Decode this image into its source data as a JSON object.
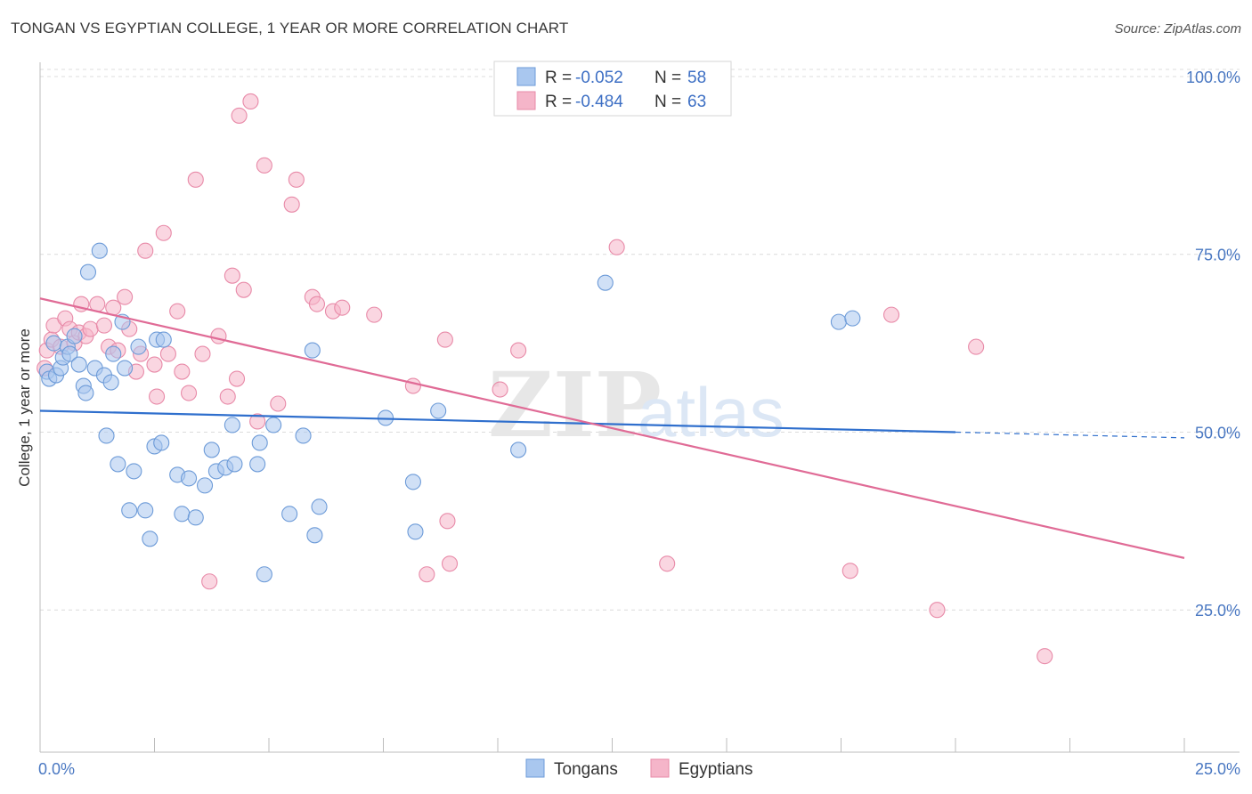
{
  "header": {
    "title": "TONGAN VS EGYPTIAN COLLEGE, 1 YEAR OR MORE CORRELATION CHART",
    "source": "Source: ZipAtlas.com"
  },
  "watermark": {
    "part1": "ZIP",
    "part2": "atlas"
  },
  "legend_top": [
    {
      "r_label": "R = ",
      "r_value": "-0.052",
      "n_label": "N = ",
      "n_value": "58",
      "color": "#a9c7ef"
    },
    {
      "r_label": "R = ",
      "r_value": "-0.484",
      "n_label": "N = ",
      "n_value": "63",
      "color": "#f5b5c9"
    }
  ],
  "legend_bottom": [
    {
      "label": "Tongans",
      "color": "#a9c7ef"
    },
    {
      "label": "Egyptians",
      "color": "#f5b5c9"
    }
  ],
  "colors": {
    "blue_fill": "#a9c7ef",
    "blue_stroke": "#6d9bd8",
    "blue_line": "#2f6fcd",
    "pink_fill": "#f5b5c9",
    "pink_stroke": "#e88aa8",
    "pink_line": "#e06b96",
    "grid": "#dcdcdc",
    "tick_text": "#4a78c2"
  },
  "chart_data": {
    "type": "scatter",
    "title": "TONGAN VS EGYPTIAN COLLEGE, 1 YEAR OR MORE CORRELATION CHART",
    "xlabel": "",
    "ylabel": "College, 1 year or more",
    "xlim": [
      0,
      25
    ],
    "ylim": [
      5,
      102
    ],
    "x_tick_labels": [
      {
        "value": 0,
        "label": "0.0%"
      },
      {
        "value": 25,
        "label": "25.0%"
      }
    ],
    "y_tick_labels": [
      {
        "value": 25,
        "label": "25.0%"
      },
      {
        "value": 50,
        "label": "50.0%"
      },
      {
        "value": 75,
        "label": "75.0%"
      },
      {
        "value": 100,
        "label": "100.0%"
      }
    ],
    "grid": true,
    "legend": "top-center",
    "series": [
      {
        "name": "Tongans",
        "r": -0.052,
        "n": 58,
        "trend": {
          "x0": 0,
          "y0": 53.0,
          "x1": 20,
          "y1": 50.0,
          "dashed_to_x": 25,
          "dashed_to_y": 49.2
        },
        "points": [
          [
            0.15,
            58.5
          ],
          [
            0.2,
            57.5
          ],
          [
            0.3,
            62.5
          ],
          [
            0.35,
            58.0
          ],
          [
            0.45,
            59.0
          ],
          [
            0.5,
            60.5
          ],
          [
            0.6,
            62.0
          ],
          [
            0.65,
            61.0
          ],
          [
            0.75,
            63.5
          ],
          [
            0.85,
            59.5
          ],
          [
            0.95,
            56.5
          ],
          [
            1.0,
            55.5
          ],
          [
            1.05,
            72.5
          ],
          [
            1.2,
            59.0
          ],
          [
            1.3,
            75.5
          ],
          [
            1.4,
            58.0
          ],
          [
            1.45,
            49.5
          ],
          [
            1.55,
            57.0
          ],
          [
            1.6,
            61.0
          ],
          [
            1.7,
            45.5
          ],
          [
            1.8,
            65.5
          ],
          [
            1.85,
            59.0
          ],
          [
            1.95,
            39.0
          ],
          [
            2.05,
            44.5
          ],
          [
            2.15,
            62.0
          ],
          [
            2.3,
            39.0
          ],
          [
            2.4,
            35.0
          ],
          [
            2.5,
            48.0
          ],
          [
            2.55,
            63.0
          ],
          [
            2.65,
            48.5
          ],
          [
            2.7,
            63.0
          ],
          [
            3.0,
            44.0
          ],
          [
            3.1,
            38.5
          ],
          [
            3.25,
            43.5
          ],
          [
            3.4,
            38.0
          ],
          [
            3.6,
            42.5
          ],
          [
            3.75,
            47.5
          ],
          [
            3.85,
            44.5
          ],
          [
            4.05,
            45.0
          ],
          [
            4.2,
            51.0
          ],
          [
            4.25,
            45.5
          ],
          [
            4.75,
            45.5
          ],
          [
            4.8,
            48.5
          ],
          [
            4.9,
            30.0
          ],
          [
            5.1,
            51.0
          ],
          [
            5.45,
            38.5
          ],
          [
            5.75,
            49.5
          ],
          [
            5.95,
            61.5
          ],
          [
            6.0,
            35.5
          ],
          [
            6.1,
            39.5
          ],
          [
            7.55,
            52.0
          ],
          [
            8.15,
            43.0
          ],
          [
            8.2,
            36.0
          ],
          [
            8.7,
            53.0
          ],
          [
            10.45,
            47.5
          ],
          [
            12.35,
            71.0
          ],
          [
            17.45,
            65.5
          ],
          [
            17.75,
            66.0
          ]
        ]
      },
      {
        "name": "Egyptians",
        "r": -0.484,
        "n": 63,
        "trend": {
          "x0": 0,
          "y0": 68.8,
          "x1": 25,
          "y1": 32.3
        },
        "points": [
          [
            0.1,
            59.0
          ],
          [
            0.15,
            61.5
          ],
          [
            0.25,
            63.0
          ],
          [
            0.3,
            65.0
          ],
          [
            0.45,
            62.0
          ],
          [
            0.55,
            66.0
          ],
          [
            0.65,
            64.5
          ],
          [
            0.75,
            62.5
          ],
          [
            0.85,
            64.0
          ],
          [
            0.9,
            68.0
          ],
          [
            1.0,
            63.5
          ],
          [
            1.1,
            64.5
          ],
          [
            1.25,
            68.0
          ],
          [
            1.4,
            65.0
          ],
          [
            1.5,
            62.0
          ],
          [
            1.6,
            67.5
          ],
          [
            1.7,
            61.5
          ],
          [
            1.85,
            69.0
          ],
          [
            1.95,
            64.5
          ],
          [
            2.1,
            58.5
          ],
          [
            2.2,
            61.0
          ],
          [
            2.3,
            75.5
          ],
          [
            2.5,
            59.5
          ],
          [
            2.55,
            55.0
          ],
          [
            2.7,
            78.0
          ],
          [
            2.8,
            61.0
          ],
          [
            3.0,
            67.0
          ],
          [
            3.1,
            58.5
          ],
          [
            3.25,
            55.5
          ],
          [
            3.4,
            85.5
          ],
          [
            3.55,
            61.0
          ],
          [
            3.7,
            29.0
          ],
          [
            3.9,
            63.5
          ],
          [
            4.1,
            55.0
          ],
          [
            4.2,
            72.0
          ],
          [
            4.3,
            57.5
          ],
          [
            4.35,
            94.5
          ],
          [
            4.45,
            70.0
          ],
          [
            4.6,
            96.5
          ],
          [
            4.75,
            51.5
          ],
          [
            4.9,
            87.5
          ],
          [
            5.2,
            54.0
          ],
          [
            5.5,
            82.0
          ],
          [
            5.6,
            85.5
          ],
          [
            5.95,
            69.0
          ],
          [
            6.05,
            68.0
          ],
          [
            6.4,
            67.0
          ],
          [
            6.6,
            67.5
          ],
          [
            7.3,
            66.5
          ],
          [
            8.15,
            56.5
          ],
          [
            8.45,
            30.0
          ],
          [
            8.85,
            63.0
          ],
          [
            8.95,
            31.5
          ],
          [
            8.9,
            37.5
          ],
          [
            10.05,
            56.0
          ],
          [
            10.45,
            61.5
          ],
          [
            12.6,
            76.0
          ],
          [
            13.7,
            31.5
          ],
          [
            17.7,
            30.5
          ],
          [
            18.6,
            66.5
          ],
          [
            19.6,
            25.0
          ],
          [
            20.45,
            62.0
          ],
          [
            21.95,
            18.5
          ]
        ]
      }
    ]
  }
}
